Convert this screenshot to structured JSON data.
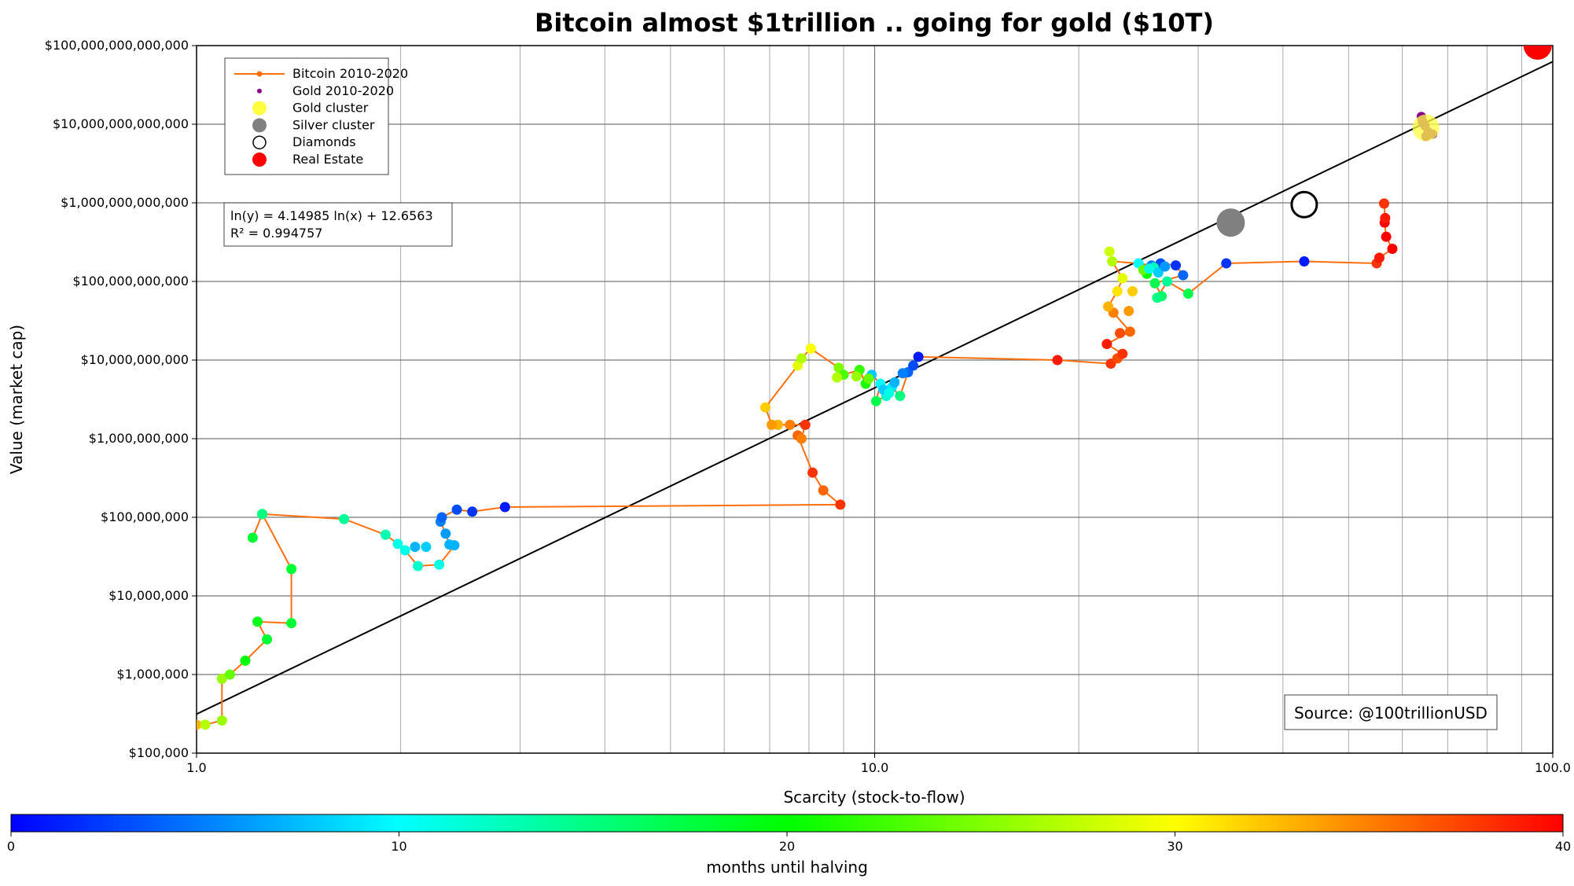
{
  "chart_data": {
    "type": "scatter",
    "title": "Bitcoin almost $1trillion .. going for gold ($10T)",
    "xlabel": "Scarcity (stock-to-flow)",
    "ylabel": "Value (market cap)",
    "x_scale": "log",
    "y_scale": "log",
    "xlim": [
      1,
      100
    ],
    "ylim": [
      100000,
      100000000000000
    ],
    "x_ticks": [
      1,
      10,
      100
    ],
    "x_tick_labels": [
      "1.0",
      "10.0",
      "100.0"
    ],
    "y_ticks": [
      100000,
      1000000,
      10000000,
      100000000,
      1000000000,
      10000000000,
      100000000000,
      1000000000000,
      10000000000000,
      100000000000000
    ],
    "y_tick_labels": [
      "$100,000",
      "$1,000,000",
      "$10,000,000",
      "$100,000,000",
      "$1,000,000,000",
      "$10,000,000,000",
      "$100,000,000,000",
      "$1,000,000,000,000",
      "$10,000,000,000,000",
      "$100,000,000,000,000"
    ],
    "grid": true,
    "legend_position": "top-left",
    "legend": [
      {
        "label": "Bitcoin 2010-2020",
        "marker": "line-dot",
        "color": "#ff6f0e"
      },
      {
        "label": "Gold 2010-2020",
        "marker": "small-dot",
        "color": "#8b008b"
      },
      {
        "label": "Gold cluster",
        "marker": "dot",
        "color": "#ffff40"
      },
      {
        "label": "Silver cluster",
        "marker": "dot",
        "color": "#808080"
      },
      {
        "label": "Diamonds",
        "marker": "ring",
        "color": "#000000"
      },
      {
        "label": "Real Estate",
        "marker": "dot",
        "color": "#ff0000"
      }
    ],
    "regression": {
      "equation": "ln(y) = 4.14985 ln(x) + 12.6563",
      "r_squared": "R² = 0.994757",
      "slope": 4.14985,
      "intercept": 12.6563,
      "color": "#000000"
    },
    "colorbar": {
      "label": "months until halving",
      "min": 0,
      "max": 40,
      "ticks": [
        0,
        10,
        20,
        30,
        40
      ],
      "colormap": [
        "#0000ff",
        "#00ffff",
        "#00ff00",
        "#ffff00",
        "#ff0000"
      ]
    },
    "source": "Source: @100trillionUSD",
    "bitcoin_line_color": "#ff6f0e",
    "bitcoin_series": [
      {
        "x": 1.0,
        "y": 230000,
        "c": 33
      },
      {
        "x": 1.03,
        "y": 230000,
        "c": 27
      },
      {
        "x": 1.09,
        "y": 260000,
        "c": 26
      },
      {
        "x": 1.09,
        "y": 880000,
        "c": 26
      },
      {
        "x": 1.12,
        "y": 1000000,
        "c": 24
      },
      {
        "x": 1.18,
        "y": 1500000,
        "c": 20
      },
      {
        "x": 1.27,
        "y": 2800000,
        "c": 18
      },
      {
        "x": 1.23,
        "y": 4700000,
        "c": 19
      },
      {
        "x": 1.38,
        "y": 4500000,
        "c": 18
      },
      {
        "x": 1.38,
        "y": 22000000,
        "c": 18
      },
      {
        "x": 1.25,
        "y": 110000000,
        "c": 15
      },
      {
        "x": 1.21,
        "y": 55000000,
        "c": 18
      },
      {
        "x": 1.25,
        "y": 110000000,
        "c": 15
      },
      {
        "x": 1.65,
        "y": 95000000,
        "c": 14
      },
      {
        "x": 1.9,
        "y": 60000000,
        "c": 13
      },
      {
        "x": 1.98,
        "y": 46000000,
        "c": 11
      },
      {
        "x": 2.03,
        "y": 38000000,
        "c": 11
      },
      {
        "x": 2.12,
        "y": 24000000,
        "c": 12
      },
      {
        "x": 2.28,
        "y": 25000000,
        "c": 11
      },
      {
        "x": 2.4,
        "y": 44000000,
        "c": 7
      },
      {
        "x": 2.36,
        "y": 45000000,
        "c": 7
      },
      {
        "x": 2.33,
        "y": 62000000,
        "c": 6
      },
      {
        "x": 2.29,
        "y": 88000000,
        "c": 5
      },
      {
        "x": 2.3,
        "y": 100000000,
        "c": 4
      },
      {
        "x": 2.42,
        "y": 125000000,
        "c": 3
      },
      {
        "x": 2.55,
        "y": 118000000,
        "c": 2
      },
      {
        "x": 2.85,
        "y": 135000000,
        "c": 1
      },
      {
        "x": 8.9,
        "y": 145000000,
        "c": 38
      },
      {
        "x": 8.4,
        "y": 220000000,
        "c": 36
      },
      {
        "x": 8.1,
        "y": 370000000,
        "c": 38
      },
      {
        "x": 7.7,
        "y": 1100000000,
        "c": 36
      },
      {
        "x": 7.8,
        "y": 1000000000,
        "c": 35
      },
      {
        "x": 7.9,
        "y": 1500000000,
        "c": 38
      },
      {
        "x": 7.5,
        "y": 1500000000,
        "c": 35
      },
      {
        "x": 7.2,
        "y": 1500000000,
        "c": 33
      },
      {
        "x": 7.05,
        "y": 1500000000,
        "c": 34
      },
      {
        "x": 6.9,
        "y": 2500000000,
        "c": 32
      },
      {
        "x": 7.7,
        "y": 8500000000,
        "c": 29
      },
      {
        "x": 7.8,
        "y": 10500000000,
        "c": 27
      },
      {
        "x": 8.05,
        "y": 14000000000,
        "c": 30
      },
      {
        "x": 8.85,
        "y": 8000000000,
        "c": 25
      },
      {
        "x": 9.0,
        "y": 6500000000,
        "c": 23
      },
      {
        "x": 9.5,
        "y": 7500000000,
        "c": 22
      },
      {
        "x": 9.7,
        "y": 5000000000,
        "c": 21
      },
      {
        "x": 9.9,
        "y": 6500000000,
        "c": 8
      },
      {
        "x": 10.2,
        "y": 5000000000,
        "c": 10
      },
      {
        "x": 10.05,
        "y": 3000000000,
        "c": 17
      },
      {
        "x": 10.4,
        "y": 3500000000,
        "c": 12
      },
      {
        "x": 10.6,
        "y": 4500000000,
        "c": 9
      },
      {
        "x": 10.9,
        "y": 3500000000,
        "c": 15
      },
      {
        "x": 11.2,
        "y": 7000000000,
        "c": 4
      },
      {
        "x": 11.4,
        "y": 8500000000,
        "c": 3
      },
      {
        "x": 11.6,
        "y": 11000000000,
        "c": 1
      },
      {
        "x": 18.6,
        "y": 10000000000,
        "c": 39
      },
      {
        "x": 22.3,
        "y": 9000000000,
        "c": 38
      },
      {
        "x": 22.8,
        "y": 10500000000,
        "c": 37
      },
      {
        "x": 23.2,
        "y": 12000000000,
        "c": 38
      },
      {
        "x": 22.0,
        "y": 16000000000,
        "c": 39
      },
      {
        "x": 23.8,
        "y": 23000000000,
        "c": 36
      },
      {
        "x": 22.5,
        "y": 40000000000,
        "c": 35
      },
      {
        "x": 22.1,
        "y": 48000000000,
        "c": 33
      },
      {
        "x": 22.8,
        "y": 75000000000,
        "c": 31
      },
      {
        "x": 23.2,
        "y": 110000000000,
        "c": 29
      },
      {
        "x": 22.4,
        "y": 180000000000,
        "c": 27
      },
      {
        "x": 24.5,
        "y": 170000000000,
        "c": 10
      },
      {
        "x": 25.6,
        "y": 160000000000,
        "c": 5
      },
      {
        "x": 26.4,
        "y": 170000000000,
        "c": 3
      },
      {
        "x": 27.8,
        "y": 160000000000,
        "c": 2
      },
      {
        "x": 28.5,
        "y": 120000000000,
        "c": 4
      },
      {
        "x": 25.9,
        "y": 95000000000,
        "c": 17
      },
      {
        "x": 26.5,
        "y": 65000000000,
        "c": 16
      },
      {
        "x": 26.1,
        "y": 62000000000,
        "c": 15
      },
      {
        "x": 27.0,
        "y": 100000000000,
        "c": 14
      },
      {
        "x": 29.0,
        "y": 70000000000,
        "c": 17
      },
      {
        "x": 33.0,
        "y": 170000000000,
        "c": 2
      },
      {
        "x": 43.0,
        "y": 180000000000,
        "c": 1
      },
      {
        "x": 55.0,
        "y": 170000000000,
        "c": 38
      },
      {
        "x": 55.5,
        "y": 200000000000,
        "c": 39
      },
      {
        "x": 58.0,
        "y": 260000000000,
        "c": 40
      },
      {
        "x": 56.8,
        "y": 370000000000,
        "c": 40
      },
      {
        "x": 56.5,
        "y": 560000000000,
        "c": 40
      },
      {
        "x": 56.6,
        "y": 640000000000,
        "c": 39
      },
      {
        "x": 56.4,
        "y": 980000000000,
        "c": 38
      }
    ],
    "extra_points": [
      {
        "x": 25.8,
        "y": 150000000000,
        "c": 13
      },
      {
        "x": 26.2,
        "y": 130000000000,
        "c": 8
      },
      {
        "x": 25.2,
        "y": 125000000000,
        "c": 20
      },
      {
        "x": 24.9,
        "y": 140000000000,
        "c": 24
      },
      {
        "x": 25.4,
        "y": 145000000000,
        "c": 11
      },
      {
        "x": 26.8,
        "y": 155000000000,
        "c": 6
      },
      {
        "x": 23.0,
        "y": 22000000000,
        "c": 37
      },
      {
        "x": 22.2,
        "y": 240000000000,
        "c": 28
      },
      {
        "x": 24.0,
        "y": 75000000000,
        "c": 32
      },
      {
        "x": 23.7,
        "y": 42000000000,
        "c": 34
      },
      {
        "x": 9.8,
        "y": 5800000000,
        "c": 24
      },
      {
        "x": 9.4,
        "y": 6200000000,
        "c": 26
      },
      {
        "x": 8.8,
        "y": 6000000000,
        "c": 27
      },
      {
        "x": 10.3,
        "y": 4200000000,
        "c": 8
      },
      {
        "x": 10.5,
        "y": 3800000000,
        "c": 11
      },
      {
        "x": 10.7,
        "y": 5200000000,
        "c": 7
      },
      {
        "x": 11.0,
        "y": 6800000000,
        "c": 5
      },
      {
        "x": 2.18,
        "y": 42000000,
        "c": 8
      },
      {
        "x": 2.1,
        "y": 42000000,
        "c": 7
      }
    ],
    "gold_series": [
      {
        "x": 64.0,
        "y": 12500000000000
      },
      {
        "x": 65.5,
        "y": 8000000000000
      },
      {
        "x": 66.5,
        "y": 7500000000000
      },
      {
        "x": 64.8,
        "y": 9500000000000
      },
      {
        "x": 64.2,
        "y": 11000000000000
      },
      {
        "x": 65.0,
        "y": 7000000000000
      }
    ],
    "clusters": [
      {
        "name": "Gold cluster",
        "x": 65.0,
        "y": 9000000000000,
        "color": "#ffff40"
      },
      {
        "name": "Silver cluster",
        "x": 33.5,
        "y": 560000000000,
        "color": "#808080"
      },
      {
        "name": "Diamonds",
        "x": 43.0,
        "y": 950000000000,
        "color": "#000000"
      },
      {
        "name": "Real Estate",
        "x": 95.0,
        "y": 100000000000000,
        "color": "#ff0000"
      }
    ]
  }
}
